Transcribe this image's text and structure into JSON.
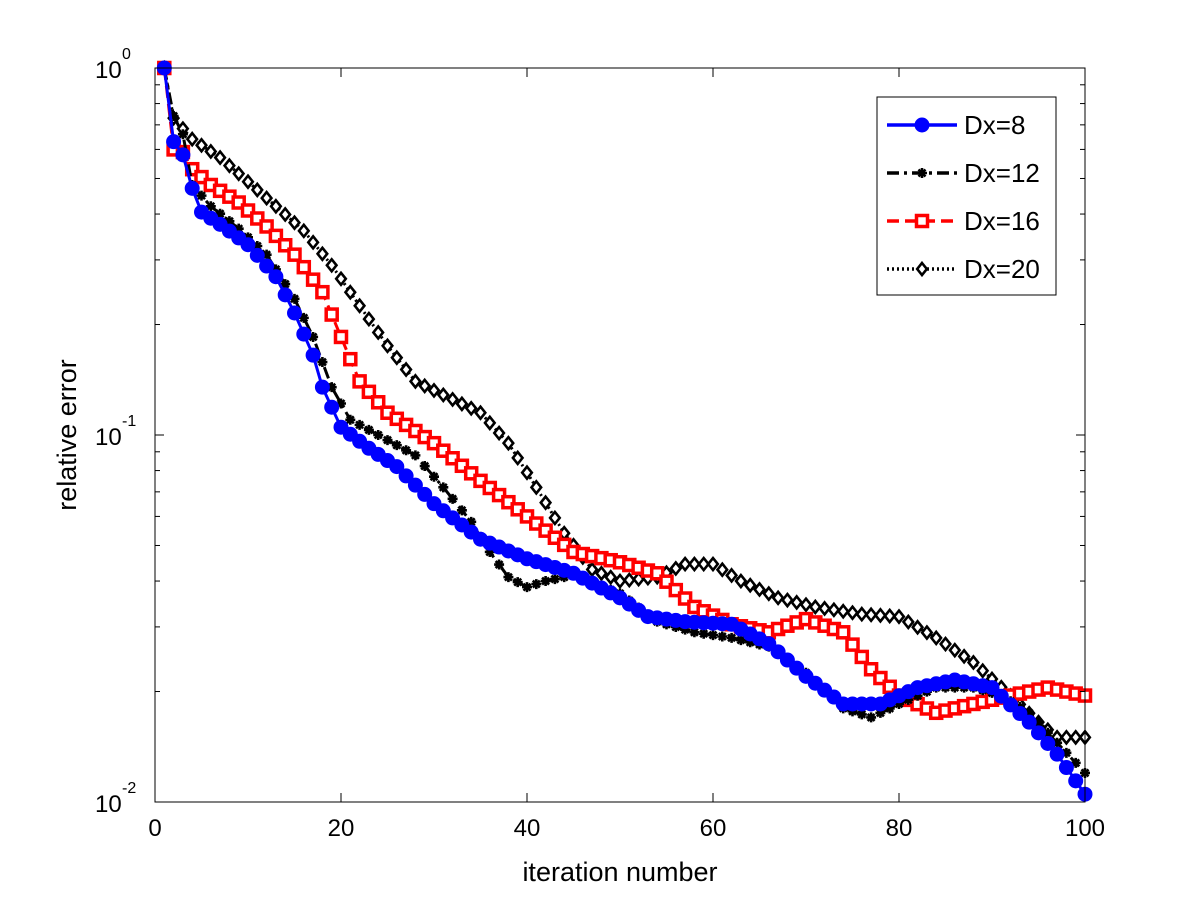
{
  "chart_data": {
    "type": "line",
    "title": "",
    "xlabel": "iteration number",
    "ylabel": "relative error",
    "xlim": [
      0,
      100
    ],
    "ylim": [
      0.01,
      1
    ],
    "yscale": "log",
    "grid": false,
    "legend_position": "top-right",
    "x_ticks": [
      0,
      20,
      40,
      60,
      80,
      100
    ],
    "y_ticks": [
      {
        "value": 0.01,
        "base": "10",
        "exponent": "-2"
      },
      {
        "value": 0.1,
        "base": "10",
        "exponent": "-1"
      },
      {
        "value": 1,
        "base": "10",
        "exponent": "0"
      }
    ],
    "series": [
      {
        "name": "Dx=8",
        "color": "#0000ff",
        "line_style": "solid",
        "marker": "circle",
        "knots": [
          [
            1,
            1.0
          ],
          [
            2,
            0.63
          ],
          [
            3,
            0.58
          ],
          [
            4,
            0.47
          ],
          [
            5,
            0.405
          ],
          [
            7,
            0.375
          ],
          [
            10,
            0.33
          ],
          [
            13,
            0.27
          ],
          [
            15,
            0.215
          ],
          [
            17,
            0.165
          ],
          [
            18,
            0.135
          ],
          [
            20,
            0.105
          ],
          [
            23,
            0.092
          ],
          [
            26,
            0.082
          ],
          [
            30,
            0.065
          ],
          [
            35,
            0.052
          ],
          [
            40,
            0.046
          ],
          [
            45,
            0.042
          ],
          [
            50,
            0.036
          ],
          [
            53,
            0.032
          ],
          [
            57,
            0.031
          ],
          [
            62,
            0.0305
          ],
          [
            66,
            0.027
          ],
          [
            70,
            0.022
          ],
          [
            74,
            0.0185
          ],
          [
            78,
            0.0185
          ],
          [
            82,
            0.0205
          ],
          [
            86,
            0.0215
          ],
          [
            90,
            0.0205
          ],
          [
            94,
            0.0165
          ],
          [
            97,
            0.0135
          ],
          [
            100,
            0.0105
          ]
        ]
      },
      {
        "name": "Dx=12",
        "color": "#000000",
        "line_style": "dash-dot",
        "marker": "star",
        "knots": [
          [
            1,
            1.0
          ],
          [
            2,
            0.74
          ],
          [
            3,
            0.66
          ],
          [
            4,
            0.48
          ],
          [
            6,
            0.42
          ],
          [
            9,
            0.365
          ],
          [
            12,
            0.31
          ],
          [
            15,
            0.235
          ],
          [
            17,
            0.185
          ],
          [
            19,
            0.135
          ],
          [
            21,
            0.11
          ],
          [
            24,
            0.1
          ],
          [
            28,
            0.088
          ],
          [
            31,
            0.072
          ],
          [
            34,
            0.058
          ],
          [
            36,
            0.048
          ],
          [
            38,
            0.041
          ],
          [
            40,
            0.0385
          ],
          [
            42,
            0.04
          ],
          [
            45,
            0.0415
          ],
          [
            50,
            0.037
          ],
          [
            54,
            0.031
          ],
          [
            58,
            0.029
          ],
          [
            62,
            0.028
          ],
          [
            66,
            0.0265
          ],
          [
            70,
            0.0225
          ],
          [
            74,
            0.018
          ],
          [
            77,
            0.017
          ],
          [
            80,
            0.0185
          ],
          [
            84,
            0.0205
          ],
          [
            88,
            0.0205
          ],
          [
            91,
            0.0195
          ],
          [
            94,
            0.0175
          ],
          [
            97,
            0.0145
          ],
          [
            100,
            0.012
          ]
        ]
      },
      {
        "name": "Dx=16",
        "color": "#ff0000",
        "line_style": "dashed",
        "marker": "square",
        "knots": [
          [
            1,
            1.0
          ],
          [
            2,
            0.6
          ],
          [
            3,
            0.59
          ],
          [
            4,
            0.53
          ],
          [
            6,
            0.48
          ],
          [
            9,
            0.43
          ],
          [
            12,
            0.37
          ],
          [
            15,
            0.31
          ],
          [
            18,
            0.245
          ],
          [
            20,
            0.185
          ],
          [
            22,
            0.14
          ],
          [
            25,
            0.115
          ],
          [
            30,
            0.095
          ],
          [
            35,
            0.075
          ],
          [
            40,
            0.06
          ],
          [
            45,
            0.048
          ],
          [
            50,
            0.045
          ],
          [
            54,
            0.042
          ],
          [
            58,
            0.034
          ],
          [
            62,
            0.0305
          ],
          [
            66,
            0.029
          ],
          [
            70,
            0.0315
          ],
          [
            74,
            0.029
          ],
          [
            77,
            0.023
          ],
          [
            80,
            0.0195
          ],
          [
            84,
            0.0175
          ],
          [
            88,
            0.0185
          ],
          [
            92,
            0.0195
          ],
          [
            96,
            0.0205
          ],
          [
            100,
            0.0195
          ]
        ]
      },
      {
        "name": "Dx=20",
        "color": "#000000",
        "line_style": "dotted",
        "marker": "diamond",
        "knots": [
          [
            1,
            1.0
          ],
          [
            2,
            0.73
          ],
          [
            4,
            0.64
          ],
          [
            7,
            0.57
          ],
          [
            10,
            0.49
          ],
          [
            13,
            0.42
          ],
          [
            16,
            0.36
          ],
          [
            19,
            0.29
          ],
          [
            22,
            0.225
          ],
          [
            25,
            0.175
          ],
          [
            28,
            0.14
          ],
          [
            32,
            0.125
          ],
          [
            35,
            0.115
          ],
          [
            38,
            0.095
          ],
          [
            41,
            0.072
          ],
          [
            44,
            0.054
          ],
          [
            47,
            0.043
          ],
          [
            50,
            0.04
          ],
          [
            54,
            0.041
          ],
          [
            57,
            0.0445
          ],
          [
            60,
            0.0445
          ],
          [
            63,
            0.04
          ],
          [
            67,
            0.036
          ],
          [
            71,
            0.034
          ],
          [
            76,
            0.0325
          ],
          [
            80,
            0.032
          ],
          [
            84,
            0.028
          ],
          [
            88,
            0.024
          ],
          [
            92,
            0.0195
          ],
          [
            95,
            0.0165
          ],
          [
            97,
            0.015
          ],
          [
            100,
            0.015
          ]
        ]
      }
    ]
  }
}
